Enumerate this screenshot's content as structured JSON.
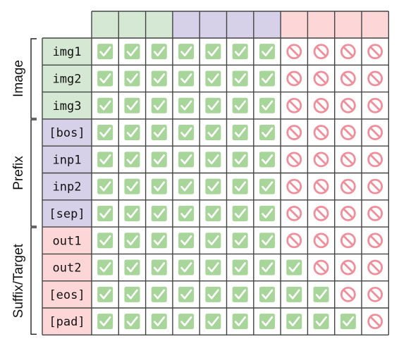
{
  "colors": {
    "image": "#d5e8d4",
    "prefix": "#d6d1e9",
    "suffix": "#fdd7d7",
    "grid": "#444444",
    "check_fill": "#a8d59a",
    "check_mark": "#ffffff",
    "block": "#ee8f9b"
  },
  "columns": [
    "image",
    "image",
    "image",
    "prefix",
    "prefix",
    "prefix",
    "prefix",
    "suffix",
    "suffix",
    "suffix",
    "suffix"
  ],
  "groups": [
    {
      "label": "Image",
      "category": "image",
      "rows": [
        0,
        1,
        2
      ]
    },
    {
      "label": "Prefix",
      "category": "prefix",
      "rows": [
        3,
        4,
        5,
        6
      ]
    },
    {
      "label": "Suffix/Target",
      "category": "suffix",
      "rows": [
        7,
        8,
        9,
        10
      ]
    }
  ],
  "rows": [
    {
      "label": "img1",
      "category": "image",
      "cells": [
        1,
        1,
        1,
        1,
        1,
        1,
        1,
        0,
        0,
        0,
        0
      ]
    },
    {
      "label": "img2",
      "category": "image",
      "cells": [
        1,
        1,
        1,
        1,
        1,
        1,
        1,
        0,
        0,
        0,
        0
      ]
    },
    {
      "label": "img3",
      "category": "image",
      "cells": [
        1,
        1,
        1,
        1,
        1,
        1,
        1,
        0,
        0,
        0,
        0
      ]
    },
    {
      "label": "[bos]",
      "category": "prefix",
      "cells": [
        1,
        1,
        1,
        1,
        1,
        1,
        1,
        0,
        0,
        0,
        0
      ]
    },
    {
      "label": "inp1",
      "category": "prefix",
      "cells": [
        1,
        1,
        1,
        1,
        1,
        1,
        1,
        0,
        0,
        0,
        0
      ]
    },
    {
      "label": "inp2",
      "category": "prefix",
      "cells": [
        1,
        1,
        1,
        1,
        1,
        1,
        1,
        0,
        0,
        0,
        0
      ]
    },
    {
      "label": "[sep]",
      "category": "prefix",
      "cells": [
        1,
        1,
        1,
        1,
        1,
        1,
        1,
        0,
        0,
        0,
        0
      ]
    },
    {
      "label": "out1",
      "category": "suffix",
      "cells": [
        1,
        1,
        1,
        1,
        1,
        1,
        1,
        0,
        0,
        0,
        0
      ]
    },
    {
      "label": "out2",
      "category": "suffix",
      "cells": [
        1,
        1,
        1,
        1,
        1,
        1,
        1,
        1,
        0,
        0,
        0
      ]
    },
    {
      "label": "[eos]",
      "category": "suffix",
      "cells": [
        1,
        1,
        1,
        1,
        1,
        1,
        1,
        1,
        1,
        0,
        0
      ]
    },
    {
      "label": "[pad]",
      "category": "suffix",
      "cells": [
        1,
        1,
        1,
        1,
        1,
        1,
        1,
        1,
        1,
        1,
        0
      ]
    }
  ]
}
